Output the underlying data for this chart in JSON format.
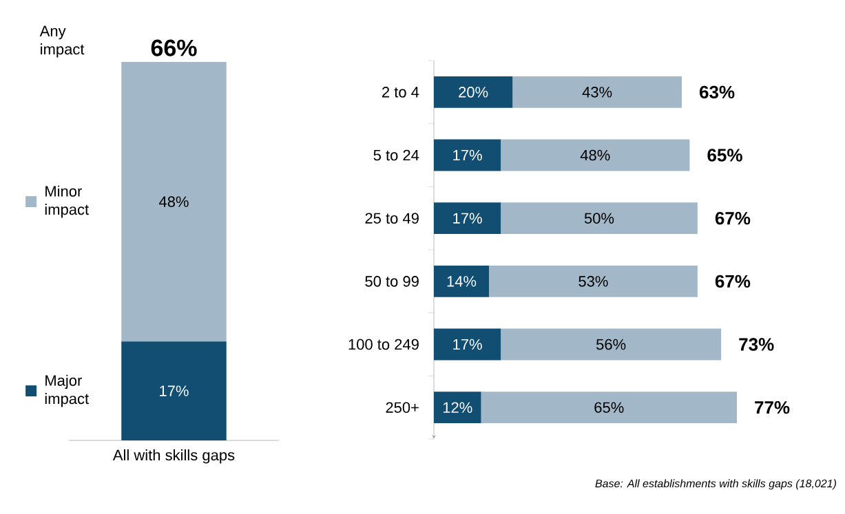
{
  "chart_data": [
    {
      "type": "bar",
      "stacked": true,
      "categories": [
        "All with skills gaps"
      ],
      "legend": "left",
      "series": [
        {
          "name": "Major impact",
          "color": "#124e72",
          "values": [
            17
          ],
          "value_labels": [
            "17%"
          ]
        },
        {
          "name": "Minor impact",
          "color": "#a2b8c8",
          "values": [
            48
          ],
          "value_labels": [
            "48%"
          ]
        }
      ],
      "totals": [
        "66%"
      ],
      "annotations": [
        "Any impact"
      ]
    },
    {
      "type": "bar",
      "stacked": true,
      "orientation": "horizontal",
      "categories": [
        "2 to 4",
        "5 to 24",
        "25 to 49",
        "50 to 99",
        "100 to 249",
        "250+"
      ],
      "series": [
        {
          "color": "#124e72",
          "values": [
            20,
            17,
            17,
            14,
            17,
            12
          ],
          "value_labels": [
            "20%",
            "17%",
            "17%",
            "14%",
            "17%",
            "12%"
          ]
        },
        {
          "color": "#a2b8c8",
          "values": [
            43,
            48,
            50,
            53,
            56,
            65
          ],
          "value_labels": [
            "43%",
            "48%",
            "50%",
            "53%",
            "56%",
            "65%"
          ]
        }
      ],
      "totals": [
        "63%",
        "65%",
        "67%",
        "67%",
        "73%",
        "77%"
      ],
      "annotations": [
        "Base: All establishments with skills gaps (18,021)"
      ]
    }
  ]
}
